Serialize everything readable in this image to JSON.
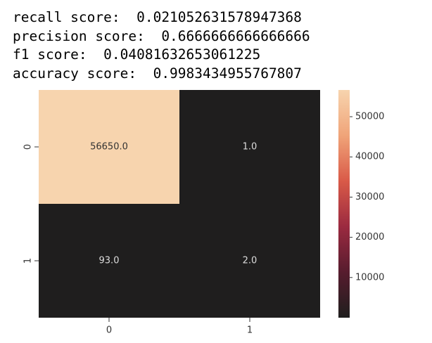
{
  "output_lines": [
    "recall score:  0.021052631578947368",
    "precision score:  0.6666666666666666",
    "f1 score:  0.04081632653061225",
    "accuracy score:  0.9983434955767807"
  ],
  "chart_data": {
    "type": "heatmap",
    "rows": [
      "0",
      "1"
    ],
    "columns": [
      "0",
      "1"
    ],
    "values": [
      [
        56650,
        1
      ],
      [
        93,
        2
      ]
    ],
    "value_labels": [
      [
        "56650.0",
        "1.0"
      ],
      [
        "93.0",
        "2.0"
      ]
    ],
    "clim": [
      1,
      56650
    ],
    "cticks": [
      10000,
      20000,
      30000,
      40000,
      50000
    ],
    "colorscale": [
      "#1f1e1e",
      "#571c2e",
      "#9b2a40",
      "#d95a48",
      "#f0a479",
      "#f7d4ae"
    ]
  }
}
